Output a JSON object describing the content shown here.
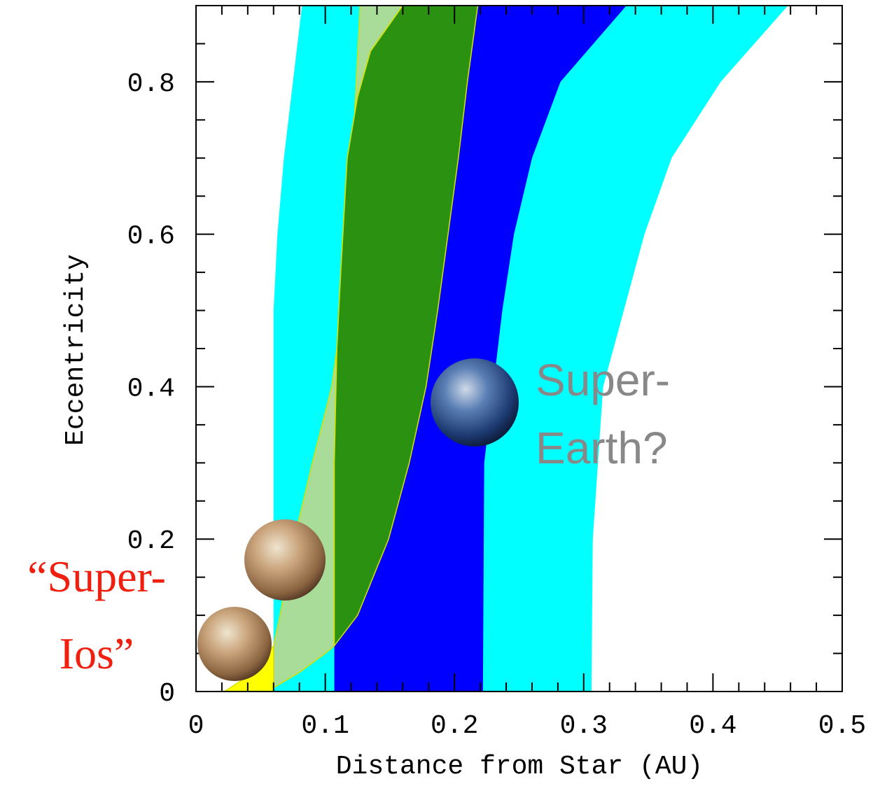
{
  "chart_data": {
    "type": "region",
    "xlabel": "Distance from Star (AU)",
    "ylabel": "Eccentricity",
    "xlim": [
      0,
      0.5
    ],
    "ylim": [
      0,
      0.9
    ],
    "xticks": [
      0,
      0.1,
      0.2,
      0.3,
      0.4,
      0.5
    ],
    "yticks": [
      0,
      0.2,
      0.4,
      0.6,
      0.8
    ],
    "xminorticks": [
      0.02,
      0.04,
      0.06,
      0.08,
      0.12,
      0.14,
      0.16,
      0.18,
      0.22,
      0.24,
      0.26,
      0.28,
      0.32,
      0.34,
      0.36,
      0.38,
      0.42,
      0.44,
      0.46,
      0.48
    ],
    "yminorticks": [
      0.05,
      0.1,
      0.15,
      0.25,
      0.3,
      0.35,
      0.45,
      0.5,
      0.55,
      0.65,
      0.7,
      0.75,
      0.85
    ],
    "series": [
      {
        "color": "#00ffff",
        "x": [
          0.06,
          0.06,
          0.063,
          0.068,
          0.075,
          0.082,
          0.458,
          0.406,
          0.368,
          0.347,
          0.315,
          0.307,
          0.306
        ],
        "y": [
          0,
          0.5,
          0.6,
          0.7,
          0.8,
          0.9,
          0.9,
          0.8,
          0.7,
          0.6,
          0.4,
          0.2,
          0
        ]
      },
      {
        "color": "#0000ff",
        "x": [
          0.107,
          0.107,
          0.109,
          0.112,
          0.117,
          0.125,
          0.135,
          0.16,
          0.333,
          0.282,
          0.26,
          0.246,
          0.237,
          0.23,
          0.223,
          0.222
        ],
        "y": [
          0,
          0.3,
          0.45,
          0.55,
          0.7,
          0.78,
          0.84,
          0.9,
          0.9,
          0.8,
          0.7,
          0.6,
          0.5,
          0.4,
          0.3,
          0
        ]
      },
      {
        "color": "#a8dc98",
        "x": [
          0.06,
          0.06,
          0.065,
          0.076,
          0.09,
          0.105,
          0.113,
          0.117,
          0.121,
          0.124,
          0.127,
          0.16,
          0.135,
          0.125,
          0.117,
          0.112,
          0.109,
          0.107,
          0.107,
          0.1,
          0.08
        ],
        "y": [
          0.005,
          0.06,
          0.1,
          0.2,
          0.3,
          0.4,
          0.5,
          0.6,
          0.7,
          0.8,
          0.9,
          0.9,
          0.84,
          0.78,
          0.7,
          0.55,
          0.45,
          0.3,
          0.06,
          0.05,
          0.025
        ]
      },
      {
        "color": "#2a9210",
        "x": [
          0.107,
          0.107,
          0.109,
          0.112,
          0.117,
          0.125,
          0.135,
          0.16,
          0.218,
          0.21,
          0.203,
          0.195,
          0.187,
          0.178,
          0.165,
          0.149,
          0.125
        ],
        "y": [
          0.06,
          0.3,
          0.45,
          0.55,
          0.7,
          0.78,
          0.84,
          0.9,
          0.9,
          0.8,
          0.7,
          0.6,
          0.5,
          0.4,
          0.3,
          0.2,
          0.1
        ]
      },
      {
        "color": "#ffff00",
        "x": [
          0.022,
          0.04,
          0.06,
          0.06
        ],
        "y": [
          0,
          0.02,
          0.06,
          0
        ]
      }
    ],
    "annotations": [
      {
        "lines": [
          "Super-",
          "Earth?"
        ],
        "color": "#888888"
      },
      {
        "lines": [
          "“Super-",
          "Ios”"
        ],
        "color": "#f02010"
      }
    ]
  }
}
